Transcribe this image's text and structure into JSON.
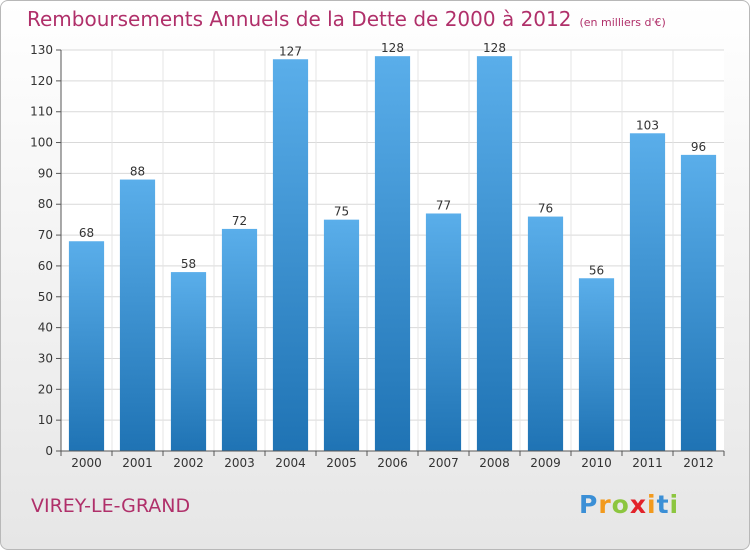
{
  "chart_data": {
    "type": "bar",
    "title": "Remboursements Annuels de la Dette de 2000 à 2012",
    "unit_note": "(en milliers d'€)",
    "categories": [
      "2000",
      "2001",
      "2002",
      "2003",
      "2004",
      "2005",
      "2006",
      "2007",
      "2008",
      "2009",
      "2010",
      "2011",
      "2012"
    ],
    "values": [
      68,
      88,
      58,
      72,
      127,
      75,
      128,
      77,
      128,
      76,
      56,
      103,
      96
    ],
    "ylim": [
      0,
      130
    ],
    "yticks": [
      0,
      10,
      20,
      30,
      40,
      50,
      60,
      70,
      80,
      90,
      100,
      110,
      120,
      130
    ],
    "grid": true,
    "bar_color_top": "#5aaeea",
    "bar_color_bottom": "#1f73b4"
  },
  "place_name": "VIREY-LE-GRAND",
  "logo": {
    "letters": [
      "P",
      "r",
      "o",
      "x",
      "i",
      "t",
      "i"
    ],
    "colors": [
      "#3b8fd6",
      "#f29a1d",
      "#8cc63f",
      "#e2232a",
      "#f29a1d",
      "#3b8fd6",
      "#8cc63f"
    ]
  },
  "title_color": "#b0306a"
}
